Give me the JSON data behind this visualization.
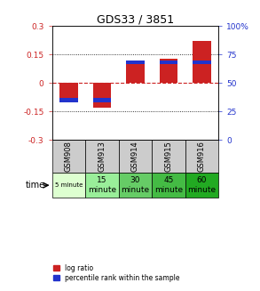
{
  "title": "GDS33 / 3851",
  "samples": [
    "GSM908",
    "GSM913",
    "GSM914",
    "GSM915",
    "GSM916"
  ],
  "log_ratios": [
    -0.1,
    -0.13,
    0.1,
    0.13,
    0.22
  ],
  "percentile_ranks": [
    0.35,
    0.35,
    0.68,
    0.68,
    0.68
  ],
  "ylim": [
    -0.3,
    0.3
  ],
  "yticks_left": [
    -0.3,
    -0.15,
    0,
    0.15,
    0.3
  ],
  "yticks_right": [
    0,
    25,
    50,
    75,
    100
  ],
  "bar_color_red": "#cc2222",
  "bar_color_blue": "#2233cc",
  "zero_line_color": "#cc2222",
  "dotted_line_color": "#000000",
  "background_color": "#ffffff",
  "gsm_bg_color": "#cccccc",
  "bar_width": 0.55,
  "legend_red_label": "log ratio",
  "legend_blue_label": "percentile rank within the sample",
  "time_colors": [
    "#ddffd0",
    "#99ee99",
    "#66cc66",
    "#44bb44",
    "#22aa22"
  ],
  "time_texts": [
    "5 minute",
    "15\nminute",
    "30\nminute",
    "45\nminute",
    "60\nminute"
  ],
  "time_small_font": [
    true,
    false,
    false,
    false,
    false
  ]
}
